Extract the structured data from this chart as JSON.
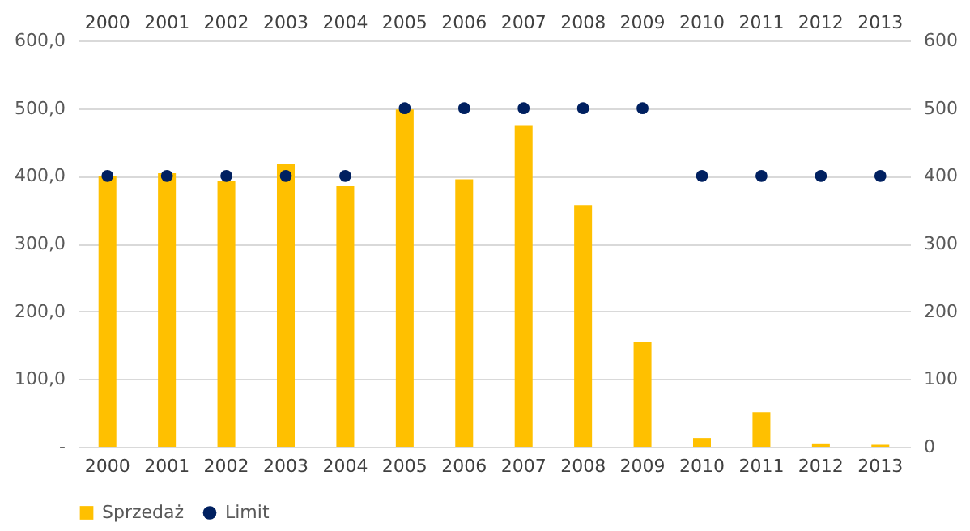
{
  "chart_data": {
    "type": "bar",
    "categories": [
      "2000",
      "2001",
      "2002",
      "2003",
      "2004",
      "2005",
      "2006",
      "2007",
      "2008",
      "2009",
      "2010",
      "2011",
      "2012",
      "2013"
    ],
    "series": [
      {
        "name": "Sprzedaż",
        "color": "#ffc000",
        "values": [
          400,
          404,
          393,
          418,
          385,
          498,
          395,
          474,
          357,
          155,
          13,
          51,
          5,
          3
        ]
      },
      {
        "name": "Limit",
        "type": "scatter",
        "axis": "y2",
        "color": "#002060",
        "values": [
          400,
          400,
          400,
          400,
          400,
          500,
          500,
          500,
          500,
          500,
          400,
          400,
          400,
          400
        ]
      }
    ],
    "ylim": [
      0,
      600
    ],
    "yticks": [
      {
        "value": 0,
        "label": "-"
      },
      {
        "value": 100,
        "label": "100,0"
      },
      {
        "value": 200,
        "label": "200,0"
      },
      {
        "value": 300,
        "label": "300,0"
      },
      {
        "value": 400,
        "label": "400,0"
      },
      {
        "value": 500,
        "label": "500,0"
      },
      {
        "value": 600,
        "label": "600,0"
      }
    ],
    "y2lim": [
      0,
      600
    ],
    "y2ticks": [
      0,
      100,
      200,
      300,
      400,
      500,
      600
    ],
    "grid": "y",
    "legend": "bottom",
    "marker": "circle"
  }
}
